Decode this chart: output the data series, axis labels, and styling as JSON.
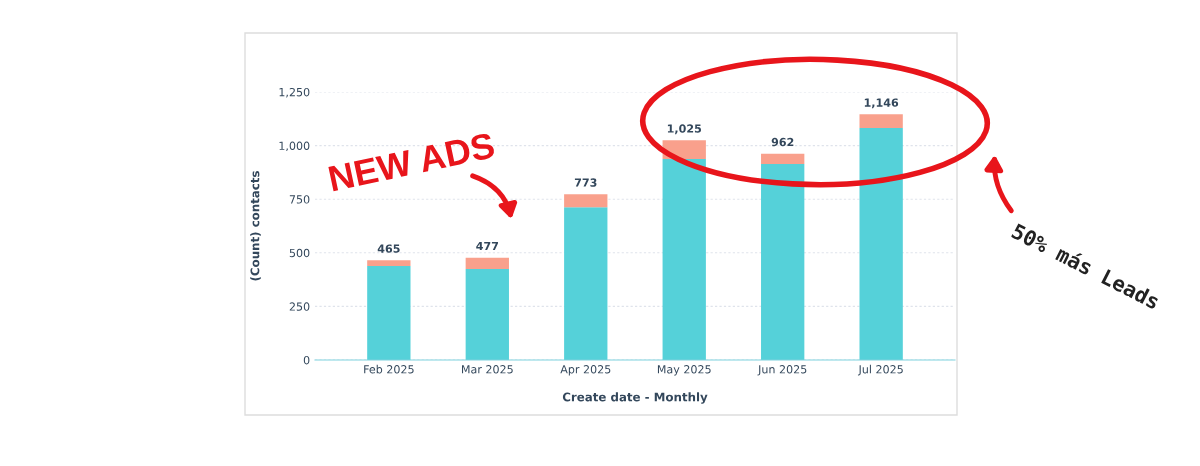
{
  "chart_data": {
    "type": "bar",
    "stacked": true,
    "categories": [
      "Feb 2025",
      "Mar 2025",
      "Apr 2025",
      "May 2025",
      "Jun 2025",
      "Jul 2025"
    ],
    "series": [
      {
        "color": "#55d1d9",
        "values": [
          438,
          424,
          713,
          938,
          914,
          1082
        ]
      },
      {
        "color": "#f9a08c",
        "values": [
          27,
          53,
          60,
          87,
          48,
          64
        ]
      }
    ],
    "totals": [
      "465",
      "477",
      "773",
      "1,025",
      "962",
      "1,146"
    ],
    "xlabel": "Create date - Monthly",
    "ylabel": "(Count) contacts",
    "ylim": [
      0,
      1250
    ],
    "yticks": [
      0,
      {
        "value": 250,
        "label": "250"
      },
      {
        "value": 500,
        "label": "500"
      },
      {
        "value": 750,
        "label": "750"
      },
      {
        "value": 1000,
        "label": "1,000"
      },
      {
        "value": 1250,
        "label": "1,250"
      }
    ],
    "grid": "y",
    "annotations": [
      "NEW ADS",
      "50% más Leads"
    ]
  }
}
